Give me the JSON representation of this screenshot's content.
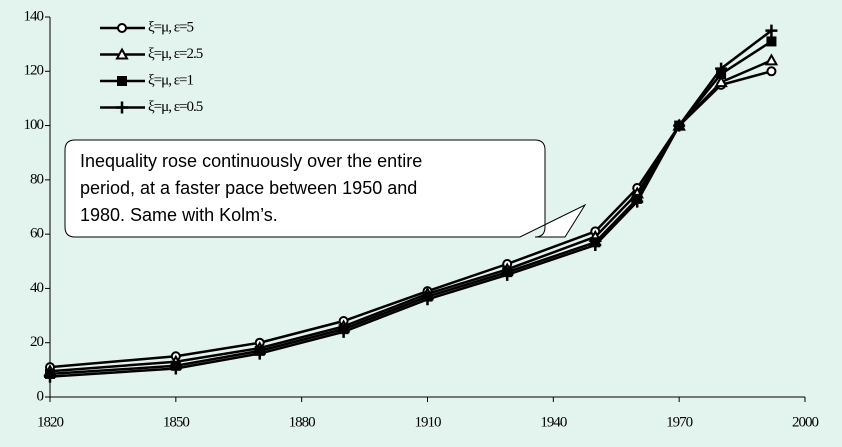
{
  "chart_data": {
    "type": "line",
    "x": [
      1820,
      1850,
      1870,
      1890,
      1910,
      1929,
      1950,
      1960,
      1970,
      1980,
      1992
    ],
    "series": [
      {
        "name": "ξ=μ, ε=5",
        "color": "#000000",
        "marker": "circle",
        "values": [
          11,
          15,
          20,
          28,
          39,
          49,
          61,
          77,
          100,
          115,
          120
        ]
      },
      {
        "name": "ξ=μ, ε=2.5",
        "color": "#000000",
        "marker": "triangle",
        "values": [
          9.5,
          13,
          18,
          26,
          38,
          47,
          59,
          75,
          100,
          116,
          124
        ]
      },
      {
        "name": "ξ=μ, ε=1",
        "color": "#000000",
        "marker": "square",
        "values": [
          8.5,
          11.5,
          17,
          25,
          37,
          46,
          57,
          73,
          100,
          119,
          131
        ]
      },
      {
        "name": "ξ=μ, ε=0.5",
        "color": "#000000",
        "marker": "plus",
        "values": [
          7.5,
          10.5,
          16,
          24,
          36,
          45,
          56,
          72,
          100,
          121,
          135
        ]
      }
    ],
    "xlim": [
      1820,
      2000
    ],
    "xticks": [
      1820,
      1850,
      1880,
      1910,
      1940,
      1970,
      2000
    ],
    "ylim": [
      0,
      140
    ],
    "yticks": [
      0,
      20,
      40,
      60,
      80,
      100,
      120,
      140
    ],
    "annotation": [
      "Inequality rose continuously over the entire",
      "period, at a faster pace between 1950 and",
      "1980. Same with Kolm’s."
    ]
  }
}
